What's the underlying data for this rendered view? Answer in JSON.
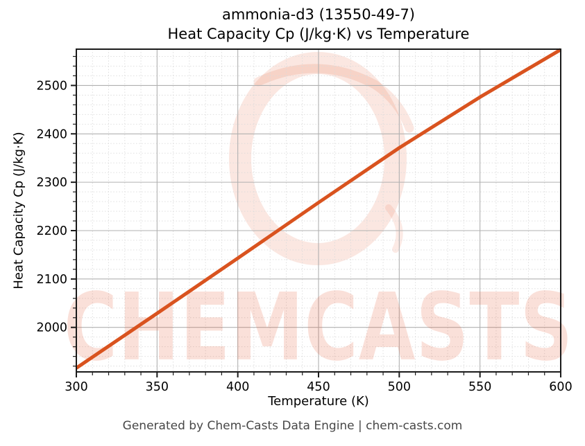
{
  "figure": {
    "title_line1": "ammonia-d3 (13550-49-7)",
    "title_line2": "Heat Capacity Cp (J/kg·K) vs Temperature",
    "watermark_text": "CHEMCASTS",
    "footer": "Generated by Chem-Casts Data Engine | chem-casts.com"
  },
  "chart_data": {
    "type": "line",
    "title": "ammonia-d3 (13550-49-7) — Heat Capacity Cp (J/kg·K) vs Temperature",
    "xlabel": "Temperature (K)",
    "ylabel": "Heat Capacity Cp (J/kg·K)",
    "x": [
      300,
      350,
      400,
      450,
      500,
      550,
      600
    ],
    "series": [
      {
        "name": "Heat Capacity Cp",
        "values": [
          1916,
          2029,
          2143,
          2258,
          2371,
          2476,
          2574
        ]
      }
    ],
    "xlim": [
      300,
      600
    ],
    "ylim": [
      1908,
      2575
    ],
    "x_major_ticks": [
      300,
      350,
      400,
      450,
      500,
      550,
      600
    ],
    "y_major_ticks": [
      2000,
      2100,
      2200,
      2300,
      2400,
      2500
    ],
    "x_minor_step": 10,
    "y_minor_step": 20,
    "grid": "major solid + minor dashed",
    "legend": "none"
  },
  "colors": {
    "line": "#d9531f",
    "watermark": "#e86a47",
    "watermark_text_rgba": "rgba(232,101,66,0.20)",
    "grid_major": "#b0b0b0",
    "grid_minor": "#dadada",
    "spine": "#1a1a1a",
    "tick_label": "#000000",
    "footer_text": "#474747"
  }
}
